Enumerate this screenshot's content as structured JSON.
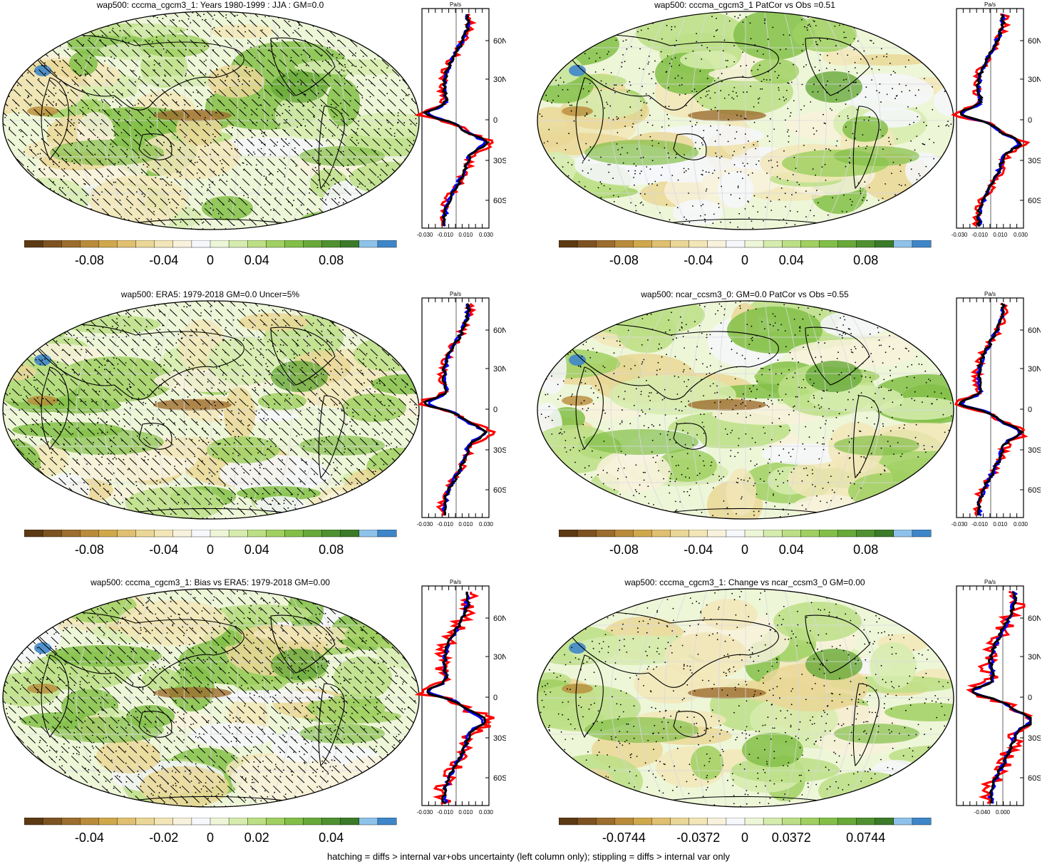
{
  "panels": [
    {
      "title": "wap500: cccma_cgcm3_1: Years 1980-1999 : JJA : GM=0.0",
      "colorbar_labels": [
        "-0.08",
        "-0.04",
        "0",
        "0.04",
        "0.08"
      ],
      "profile_unit": "Pa/s",
      "profile_ticks": [
        "-0.030",
        "-0.010",
        "0.010",
        "0.030"
      ],
      "lat_labels": [
        "60N",
        "30N",
        "0",
        "30S",
        "60S"
      ],
      "hatching": true
    },
    {
      "title": "wap500: cccma_cgcm3_1 PatCor vs Obs =0.51",
      "colorbar_labels": [
        "-0.08",
        "-0.04",
        "0",
        "0.04",
        "0.08"
      ],
      "profile_unit": "Pa/s",
      "profile_ticks": [
        "-0.030",
        "-0.010",
        "0.010",
        "0.030"
      ],
      "lat_labels": [
        "60N",
        "30N",
        "0",
        "30S",
        "60S"
      ],
      "hatching": false
    },
    {
      "title": "wap500: ERA5: 1979-2018 GM=0.0 Uncer=5%",
      "colorbar_labels": [
        "-0.08",
        "-0.04",
        "0",
        "0.04",
        "0.08"
      ],
      "profile_unit": "Pa/s",
      "profile_ticks": [
        "-0.030",
        "-0.010",
        "0.010",
        "0.030"
      ],
      "lat_labels": [
        "60N",
        "30N",
        "0",
        "30S",
        "60S"
      ],
      "hatching": true
    },
    {
      "title": "wap500: ncar_ccsm3_0: GM=0.0 PatCor vs Obs =0.55",
      "colorbar_labels": [
        "-0.08",
        "-0.04",
        "0",
        "0.04",
        "0.08"
      ],
      "profile_unit": "Pa/s",
      "profile_ticks": [
        "-0.030",
        "-0.010",
        "0.010",
        "0.030"
      ],
      "lat_labels": [
        "60N",
        "30N",
        "0",
        "30S",
        "60S"
      ],
      "hatching": false
    },
    {
      "title": "wap500: cccma_cgcm3_1: Bias vs ERA5: 1979-2018 GM=0.00",
      "colorbar_labels": [
        "-0.04",
        "-0.02",
        "0",
        "0.02",
        "0.04"
      ],
      "profile_unit": "Pa/s",
      "profile_ticks": [
        "-0.030",
        "-0.010",
        "0.010",
        "0.030"
      ],
      "lat_labels": [
        "60N",
        "30N",
        "0",
        "30S",
        "60S"
      ],
      "hatching": true
    },
    {
      "title": "wap500: cccma_cgcm3_1: Change vs ncar_ccsm3_0 GM=0.00",
      "colorbar_labels": [
        "-0.0744",
        "-0.0372",
        "0",
        "0.0372",
        "0.0744"
      ],
      "profile_unit": "Pa/s",
      "profile_ticks": [
        "-0.040",
        "0.000"
      ],
      "lat_labels": [
        "60N",
        "30N",
        "0",
        "30S",
        "60S"
      ],
      "hatching": false
    }
  ],
  "colorbar_colors": [
    "#5c3a14",
    "#7d5322",
    "#9c6d2e",
    "#b98b3a",
    "#d0a84c",
    "#e0c070",
    "#ead797",
    "#f2e6b8",
    "#f8f2dc",
    "#f6f7fb",
    "#eef6d8",
    "#d6ecae",
    "#bcdf86",
    "#a0d061",
    "#83bf48",
    "#68a93a",
    "#4f9130",
    "#3b7a28",
    "#8ec2ea",
    "#3f86c9"
  ],
  "series_colors": {
    "obs": "#ff0000",
    "model": "#0000ff",
    "ensemble": "#000000"
  },
  "footer": "hatching = diffs > internal var+obs uncertainty (left column only); stippling = diffs > internal var only"
}
